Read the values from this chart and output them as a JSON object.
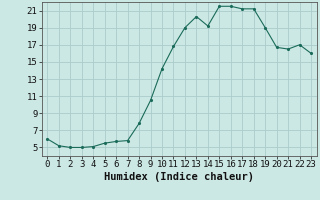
{
  "x": [
    0,
    1,
    2,
    3,
    4,
    5,
    6,
    7,
    8,
    9,
    10,
    11,
    12,
    13,
    14,
    15,
    16,
    17,
    18,
    19,
    20,
    21,
    22,
    23
  ],
  "y": [
    6.0,
    5.2,
    5.0,
    5.0,
    5.1,
    5.5,
    5.7,
    5.8,
    7.8,
    10.5,
    14.2,
    16.8,
    19.0,
    20.3,
    19.2,
    21.5,
    21.5,
    21.2,
    21.2,
    19.0,
    16.7,
    16.5,
    17.0,
    16.0
  ],
  "xlabel": "Humidex (Indice chaleur)",
  "bg_color": "#cce8e4",
  "grid_color": "#aaccca",
  "line_color": "#1a6b5a",
  "marker_color": "#1a6b5a",
  "ylim": [
    4,
    22
  ],
  "xlim": [
    -0.5,
    23.5
  ],
  "yticks": [
    5,
    7,
    9,
    11,
    13,
    15,
    17,
    19,
    21
  ],
  "xticks": [
    0,
    1,
    2,
    3,
    4,
    5,
    6,
    7,
    8,
    9,
    10,
    11,
    12,
    13,
    14,
    15,
    16,
    17,
    18,
    19,
    20,
    21,
    22,
    23
  ],
  "tick_fontsize": 6.5,
  "xlabel_fontsize": 7.5
}
